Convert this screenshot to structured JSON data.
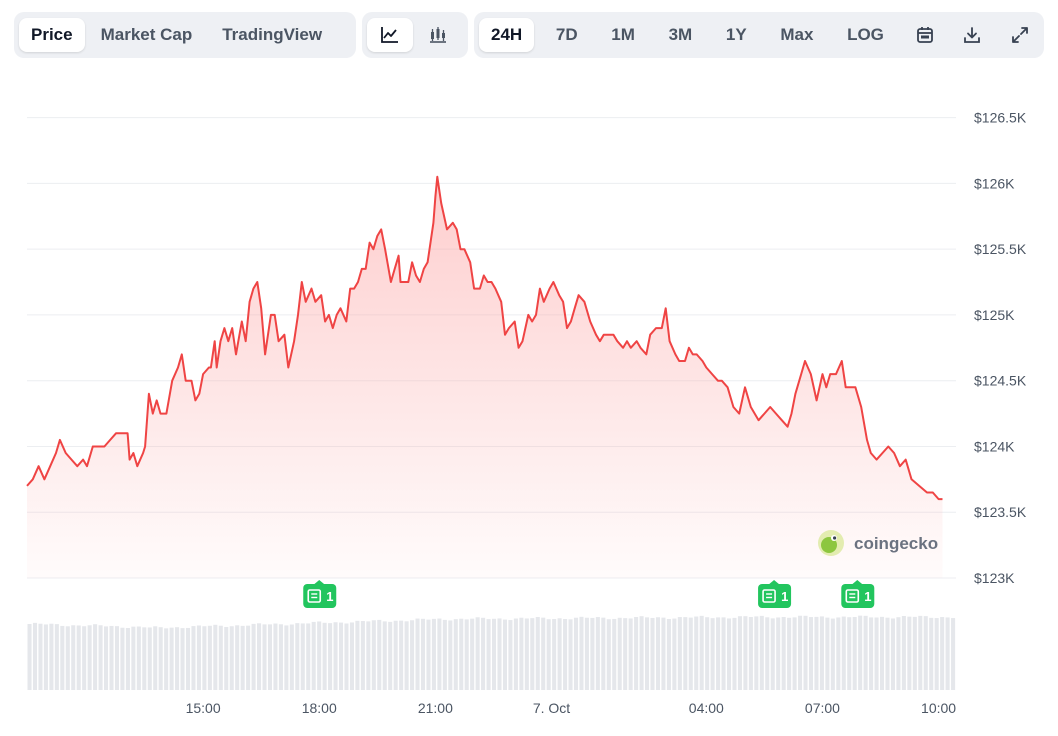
{
  "toolbar": {
    "type_tabs": [
      {
        "label": "Price",
        "active": true
      },
      {
        "label": "Market Cap",
        "active": false
      },
      {
        "label": "TradingView",
        "active": false
      }
    ],
    "view_buttons": [
      {
        "icon": "line-chart-icon",
        "active": true
      },
      {
        "icon": "candlestick-chart-icon",
        "active": false
      }
    ],
    "ranges": [
      {
        "label": "24H",
        "active": true
      },
      {
        "label": "7D",
        "active": false
      },
      {
        "label": "1M",
        "active": false
      },
      {
        "label": "3M",
        "active": false
      },
      {
        "label": "1Y",
        "active": false
      },
      {
        "label": "Max",
        "active": false
      },
      {
        "label": "LOG",
        "active": false
      }
    ],
    "tools": [
      "calendar-icon",
      "download-icon",
      "expand-icon"
    ]
  },
  "brand": {
    "name": "coingecko",
    "icon": "gecko-logo-icon"
  },
  "news_markers": [
    {
      "time": 18.0,
      "count": "1"
    },
    {
      "time": 29.75,
      "count": "1"
    },
    {
      "time": 31.9,
      "count": "1"
    }
  ],
  "colors": {
    "line": "#ef4444",
    "fill": "#fde4e4",
    "marker": "#22c55e",
    "volume": "#e5e7eb",
    "grid": "#eceef1"
  },
  "chart_data": {
    "type": "area",
    "title": "",
    "xlabel": "",
    "ylabel": "",
    "y_tick_labels": [
      "$123K",
      "$123.5K",
      "$124K",
      "$124.5K",
      "$125K",
      "$125.5K",
      "$126K",
      "$126.5K"
    ],
    "y_tick_values": [
      123000,
      123500,
      124000,
      124500,
      125000,
      125500,
      126000,
      126500
    ],
    "ylim": [
      123000,
      126500
    ],
    "x_tick_labels": [
      "15:00",
      "18:00",
      "21:00",
      "7. Oct",
      "04:00",
      "07:00",
      "10:00"
    ],
    "x_tick_values": [
      15,
      18,
      21,
      24,
      28,
      31,
      34
    ],
    "xlim": [
      10.45,
      34.45
    ],
    "grid": true,
    "series": [
      {
        "points": [
          [
            10.45,
            123700
          ],
          [
            10.6,
            123750
          ],
          [
            10.75,
            123850
          ],
          [
            10.9,
            123750
          ],
          [
            11.05,
            123850
          ],
          [
            11.2,
            123950
          ],
          [
            11.3,
            124050
          ],
          [
            11.45,
            123950
          ],
          [
            11.6,
            123900
          ],
          [
            11.75,
            123850
          ],
          [
            11.9,
            123900
          ],
          [
            12.0,
            123850
          ],
          [
            12.15,
            124000
          ],
          [
            12.3,
            124000
          ],
          [
            12.45,
            124000
          ],
          [
            12.6,
            124050
          ],
          [
            12.75,
            124100
          ],
          [
            12.9,
            124100
          ],
          [
            13.05,
            124100
          ],
          [
            13.1,
            123900
          ],
          [
            13.2,
            123950
          ],
          [
            13.3,
            123850
          ],
          [
            13.45,
            123950
          ],
          [
            13.5,
            124000
          ],
          [
            13.6,
            124400
          ],
          [
            13.7,
            124250
          ],
          [
            13.8,
            124350
          ],
          [
            13.9,
            124250
          ],
          [
            14.05,
            124250
          ],
          [
            14.2,
            124500
          ],
          [
            14.35,
            124600
          ],
          [
            14.45,
            124700
          ],
          [
            14.55,
            124500
          ],
          [
            14.7,
            124500
          ],
          [
            14.8,
            124350
          ],
          [
            14.9,
            124400
          ],
          [
            15.0,
            124550
          ],
          [
            15.15,
            124600
          ],
          [
            15.2,
            124600
          ],
          [
            15.3,
            124800
          ],
          [
            15.35,
            124600
          ],
          [
            15.45,
            124800
          ],
          [
            15.55,
            124900
          ],
          [
            15.65,
            124800
          ],
          [
            15.75,
            124900
          ],
          [
            15.85,
            124700
          ],
          [
            16.0,
            124950
          ],
          [
            16.1,
            124800
          ],
          [
            16.2,
            125100
          ],
          [
            16.3,
            125200
          ],
          [
            16.4,
            125250
          ],
          [
            16.5,
            125050
          ],
          [
            16.6,
            124700
          ],
          [
            16.75,
            125000
          ],
          [
            16.85,
            125000
          ],
          [
            16.95,
            124800
          ],
          [
            17.1,
            124850
          ],
          [
            17.2,
            124600
          ],
          [
            17.35,
            124800
          ],
          [
            17.45,
            125000
          ],
          [
            17.55,
            125250
          ],
          [
            17.65,
            125100
          ],
          [
            17.8,
            125200
          ],
          [
            17.9,
            125100
          ],
          [
            18.05,
            125150
          ],
          [
            18.15,
            124950
          ],
          [
            18.25,
            125000
          ],
          [
            18.35,
            124900
          ],
          [
            18.45,
            125000
          ],
          [
            18.55,
            125050
          ],
          [
            18.7,
            124950
          ],
          [
            18.8,
            125200
          ],
          [
            18.9,
            125200
          ],
          [
            19.0,
            125250
          ],
          [
            19.1,
            125350
          ],
          [
            19.2,
            125350
          ],
          [
            19.3,
            125550
          ],
          [
            19.4,
            125500
          ],
          [
            19.5,
            125600
          ],
          [
            19.6,
            125650
          ],
          [
            19.7,
            125500
          ],
          [
            19.85,
            125250
          ],
          [
            19.95,
            125350
          ],
          [
            20.05,
            125450
          ],
          [
            20.1,
            125250
          ],
          [
            20.2,
            125250
          ],
          [
            20.3,
            125250
          ],
          [
            20.4,
            125400
          ],
          [
            20.5,
            125300
          ],
          [
            20.6,
            125250
          ],
          [
            20.7,
            125350
          ],
          [
            20.8,
            125400
          ],
          [
            20.95,
            125700
          ],
          [
            21.0,
            125900
          ],
          [
            21.05,
            126050
          ],
          [
            21.15,
            125850
          ],
          [
            21.3,
            125650
          ],
          [
            21.45,
            125700
          ],
          [
            21.55,
            125650
          ],
          [
            21.65,
            125500
          ],
          [
            21.75,
            125500
          ],
          [
            21.9,
            125400
          ],
          [
            22.0,
            125200
          ],
          [
            22.15,
            125200
          ],
          [
            22.25,
            125300
          ],
          [
            22.35,
            125250
          ],
          [
            22.45,
            125250
          ],
          [
            22.55,
            125200
          ],
          [
            22.7,
            125100
          ],
          [
            22.8,
            124850
          ],
          [
            22.9,
            124900
          ],
          [
            23.05,
            124950
          ],
          [
            23.15,
            124750
          ],
          [
            23.25,
            124800
          ],
          [
            23.4,
            125000
          ],
          [
            23.5,
            124950
          ],
          [
            23.6,
            125000
          ],
          [
            23.7,
            125200
          ],
          [
            23.8,
            125100
          ],
          [
            23.95,
            125200
          ],
          [
            24.05,
            125250
          ],
          [
            24.2,
            125150
          ],
          [
            24.3,
            125100
          ],
          [
            24.4,
            124900
          ],
          [
            24.5,
            124950
          ],
          [
            24.6,
            125050
          ],
          [
            24.7,
            125150
          ],
          [
            24.85,
            125100
          ],
          [
            25.0,
            124950
          ],
          [
            25.15,
            124850
          ],
          [
            25.25,
            124800
          ],
          [
            25.35,
            124850
          ],
          [
            25.45,
            124850
          ],
          [
            25.6,
            124850
          ],
          [
            25.7,
            124800
          ],
          [
            25.85,
            124750
          ],
          [
            25.95,
            124800
          ],
          [
            26.05,
            124750
          ],
          [
            26.2,
            124800
          ],
          [
            26.3,
            124750
          ],
          [
            26.45,
            124700
          ],
          [
            26.55,
            124850
          ],
          [
            26.7,
            124900
          ],
          [
            26.85,
            124900
          ],
          [
            26.95,
            125050
          ],
          [
            27.05,
            124800
          ],
          [
            27.2,
            124700
          ],
          [
            27.3,
            124650
          ],
          [
            27.45,
            124650
          ],
          [
            27.55,
            124750
          ],
          [
            27.65,
            124700
          ],
          [
            27.75,
            124700
          ],
          [
            27.9,
            124650
          ],
          [
            28.0,
            124600
          ],
          [
            28.15,
            124550
          ],
          [
            28.3,
            124500
          ],
          [
            28.4,
            124500
          ],
          [
            28.55,
            124450
          ],
          [
            28.7,
            124300
          ],
          [
            28.85,
            124250
          ],
          [
            29.0,
            124450
          ],
          [
            29.15,
            124300
          ],
          [
            29.35,
            124200
          ],
          [
            29.5,
            124250
          ],
          [
            29.65,
            124300
          ],
          [
            29.8,
            124250
          ],
          [
            29.95,
            124200
          ],
          [
            30.1,
            124150
          ],
          [
            30.2,
            124250
          ],
          [
            30.3,
            124400
          ],
          [
            30.45,
            124550
          ],
          [
            30.55,
            124650
          ],
          [
            30.7,
            124550
          ],
          [
            30.85,
            124350
          ],
          [
            31.0,
            124550
          ],
          [
            31.1,
            124450
          ],
          [
            31.2,
            124550
          ],
          [
            31.35,
            124550
          ],
          [
            31.5,
            124650
          ],
          [
            31.6,
            124450
          ],
          [
            31.75,
            124450
          ],
          [
            31.85,
            124450
          ],
          [
            32.0,
            124300
          ],
          [
            32.15,
            124050
          ],
          [
            32.25,
            123950
          ],
          [
            32.4,
            123900
          ],
          [
            32.55,
            123950
          ],
          [
            32.7,
            124000
          ],
          [
            32.85,
            123950
          ],
          [
            33.0,
            123850
          ],
          [
            33.15,
            123900
          ],
          [
            33.3,
            123750
          ],
          [
            33.5,
            123700
          ],
          [
            33.7,
            123650
          ],
          [
            33.85,
            123650
          ],
          [
            34.0,
            123600
          ],
          [
            34.1,
            123600
          ]
        ]
      }
    ]
  }
}
